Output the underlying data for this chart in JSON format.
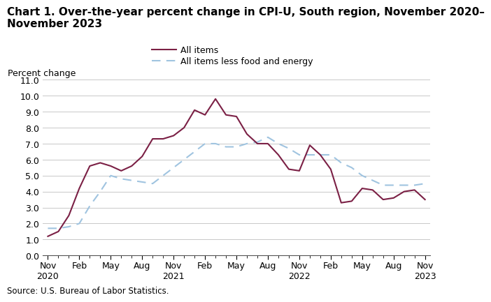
{
  "title_line1": "Chart 1. Over-the-year percent change in CPI-U, South region, November 2020–",
  "title_line2": "November 2023",
  "ylabel": "Percent change",
  "source": "Source: U.S. Bureau of Labor Statistics.",
  "ylim": [
    0.0,
    11.0
  ],
  "yticks": [
    0.0,
    1.0,
    2.0,
    3.0,
    4.0,
    5.0,
    6.0,
    7.0,
    8.0,
    9.0,
    10.0,
    11.0
  ],
  "all_items": [
    1.2,
    1.5,
    2.5,
    4.2,
    5.6,
    5.8,
    5.6,
    5.3,
    5.6,
    6.2,
    7.3,
    7.3,
    7.5,
    8.0,
    9.1,
    8.8,
    9.8,
    8.8,
    8.7,
    7.6,
    7.0,
    7.0,
    6.3,
    5.4,
    5.3,
    6.9,
    6.3,
    5.4,
    3.3,
    3.4,
    4.2,
    4.1,
    3.5,
    3.6,
    4.0,
    4.1,
    3.5
  ],
  "core_items": [
    1.7,
    1.7,
    1.8,
    2.0,
    3.1,
    4.0,
    5.0,
    4.8,
    4.7,
    4.6,
    4.5,
    5.0,
    5.5,
    6.0,
    6.5,
    7.0,
    7.0,
    6.8,
    6.8,
    7.0,
    7.1,
    7.4,
    7.0,
    6.7,
    6.3,
    6.3,
    6.3,
    6.3,
    5.8,
    5.5,
    5.0,
    4.7,
    4.4,
    4.4,
    4.4,
    4.4,
    4.5
  ],
  "all_items_color": "#7b2045",
  "core_items_color": "#a0c4e0",
  "tick_label_fontsize": 9,
  "axis_label_fontsize": 9,
  "title_fontsize": 11,
  "legend_labels": [
    "All items",
    "All items less food and energy"
  ],
  "x_tick_labels_top": [
    "Nov",
    "Feb",
    "May",
    "Aug",
    "Nov",
    "Feb",
    "May",
    "Aug",
    "Nov",
    "Feb",
    "May",
    "Aug",
    "Nov"
  ],
  "x_tick_labels_bot": [
    "2020",
    "",
    "",
    "",
    "2021",
    "",
    "",
    "",
    "2022",
    "",
    "",
    "",
    "2023"
  ],
  "x_tick_positions": [
    0,
    3,
    6,
    9,
    12,
    15,
    18,
    21,
    24,
    27,
    30,
    33,
    36
  ],
  "n_points": 37
}
